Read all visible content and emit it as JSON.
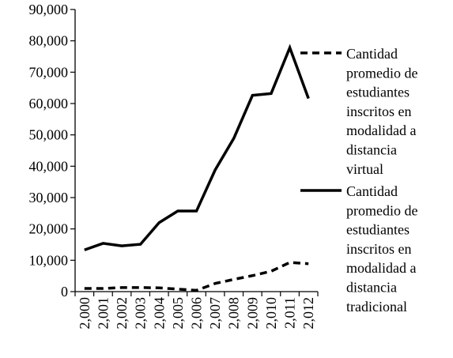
{
  "chart_data": {
    "type": "line",
    "x": [
      "2,000",
      "2,001",
      "2,002",
      "2,003",
      "2,004",
      "2,005",
      "2,006",
      "2,007",
      "2,008",
      "2,009",
      "2,010",
      "2,011",
      "2,012"
    ],
    "ylim": [
      0,
      90000
    ],
    "yticks": [
      "0",
      "10,000",
      "20,000",
      "30,000",
      "40,000",
      "50,000",
      "60,000",
      "70,000",
      "80,000",
      "90,000"
    ],
    "grid": false,
    "legend_position": "right",
    "series": [
      {
        "name": "Cantidad promedio de estudiantes inscritos en modalidad a distancia virtual",
        "name_lines": [
          "Cantidad",
          "promedio de",
          "estudiantes",
          "inscritos en",
          "modalidad a",
          "distancia",
          "virtual"
        ],
        "style": "dashed",
        "color": "#000000",
        "values": [
          1000,
          1000,
          1300,
          1300,
          1200,
          800,
          400,
          2600,
          3900,
          5100,
          6500,
          9300,
          8900
        ]
      },
      {
        "name": "Cantidad promedio de estudiantes inscritos en modalidad a distancia tradicional",
        "name_lines": [
          "Cantidad",
          "promedio de",
          "estudiantes",
          "inscritos en",
          "modalidad a",
          "distancia",
          "tradicional"
        ],
        "style": "solid",
        "color": "#000000",
        "values": [
          13300,
          15400,
          14600,
          15100,
          22000,
          25700,
          25700,
          38800,
          48900,
          62600,
          63200,
          77800,
          61600
        ]
      }
    ]
  }
}
